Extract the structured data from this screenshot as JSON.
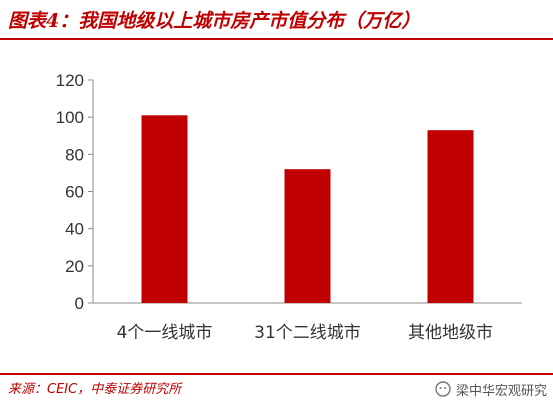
{
  "header": {
    "title": "图表4：我国地级以上城市房产市值分布（万亿）"
  },
  "footer": {
    "source": "来源：CEIC，中泰证券研究所",
    "watermark": "梁中华宏观研究"
  },
  "colors": {
    "accent": "#c00000",
    "bar": "#c00000"
  },
  "chart_data": {
    "type": "bar",
    "title": "图表4：我国地级以上城市房产市值分布（万亿）",
    "categories": [
      "4个一线城市",
      "31个二线城市",
      "其他地级市"
    ],
    "values": [
      101,
      72,
      93
    ],
    "ylim": [
      0,
      120
    ],
    "yticks": [
      0,
      20,
      40,
      60,
      80,
      100,
      120
    ],
    "xlabel": "",
    "ylabel": "",
    "grid": false,
    "legend": "none"
  }
}
